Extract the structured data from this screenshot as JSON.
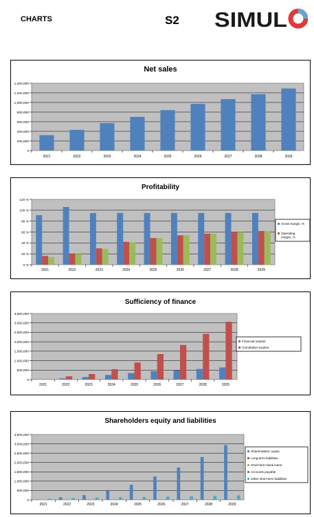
{
  "header": {
    "section": "CHARTS",
    "code": "S2",
    "logo_text": "SIMULO",
    "colors": {
      "logo_text": "#1a1a1a",
      "logo_ring_red": "#e0393e",
      "logo_ring_blue": "#6aa3cf"
    }
  },
  "colors": {
    "plot_bg": "#c0c0c0",
    "blue": "#4f81bd",
    "red": "#c0504d",
    "green": "#9bbb59",
    "purple": "#8064a2",
    "cyan": "#4bacc6"
  },
  "chart_data": [
    {
      "id": "net-sales",
      "type": "bar",
      "title": "Net sales",
      "categories": [
        "2021",
        "2022",
        "2023",
        "2024",
        "2025",
        "2026",
        "2027",
        "2028",
        "2029"
      ],
      "series": [
        {
          "values": [
            320000,
            430000,
            570000,
            700000,
            840000,
            970000,
            1070000,
            1170000,
            1290000
          ]
        }
      ],
      "yticks": [
        "0",
        "200,000",
        "400,000",
        "600,000",
        "800,000",
        "1,000,000",
        "1,200,000",
        "1,400,000"
      ],
      "ylim": [
        0,
        1400000
      ],
      "legend": "none",
      "grid": true
    },
    {
      "id": "profitability",
      "type": "bar",
      "title": "Profitability",
      "categories": [
        "2021",
        "2022",
        "2023",
        "2024",
        "2025",
        "2026",
        "2027",
        "2028",
        "2029"
      ],
      "series": [
        {
          "name": "Gross margin, %",
          "values": [
            91,
            106,
            95,
            95,
            95,
            95,
            95,
            95,
            95
          ]
        },
        {
          "name": "Operating margin, %",
          "values": [
            16,
            20,
            30,
            42,
            49,
            54,
            57,
            60,
            62
          ]
        },
        {
          "name": "",
          "values": [
            14,
            20,
            29,
            41,
            49,
            54,
            57,
            60,
            62
          ]
        }
      ],
      "yticks": [
        "0 %",
        "20 %",
        "40 %",
        "60 %",
        "80 %",
        "100 %",
        "120 %"
      ],
      "ylim": [
        0,
        120
      ],
      "legend": "right",
      "grid": true
    },
    {
      "id": "sufficiency",
      "type": "bar",
      "title": "Sufficiency of finance",
      "categories": [
        "2021",
        "2022",
        "2023",
        "2024",
        "2025",
        "2026",
        "2027",
        "2028",
        "2029"
      ],
      "series": [
        {
          "name": "Financial surplus",
          "values": [
            0,
            60000,
            130000,
            240000,
            340000,
            440000,
            480000,
            560000,
            640000
          ]
        },
        {
          "name": "Cumulative surplus",
          "values": [
            0,
            170000,
            290000,
            550000,
            900000,
            1350000,
            1830000,
            2420000,
            3060000
          ]
        }
      ],
      "yticks": [
        "0",
        "500,000",
        "1,000,000",
        "1,500,000",
        "2,000,000",
        "2,500,000",
        "3,000,000",
        "3,500,000"
      ],
      "ylim": [
        0,
        3500000
      ],
      "legend": "right",
      "grid": true
    },
    {
      "id": "equity",
      "type": "bar",
      "title": "Shareholders equity and liabilities",
      "categories": [
        "2021",
        "2022",
        "2023",
        "2024",
        "2025",
        "2026",
        "2027",
        "2028",
        "2029"
      ],
      "series": [
        {
          "name": "Shareholders' equity",
          "values": [
            20000,
            130000,
            250000,
            490000,
            810000,
            1250000,
            1730000,
            2290000,
            2930000
          ]
        },
        {
          "name": "Long-term liabilities",
          "values": [
            0,
            0,
            0,
            0,
            0,
            0,
            0,
            0,
            0
          ]
        },
        {
          "name": "Short-term bank loans",
          "values": [
            0,
            0,
            0,
            0,
            0,
            0,
            0,
            0,
            0
          ]
        },
        {
          "name": "Accounts payable",
          "values": [
            0,
            0,
            0,
            0,
            0,
            0,
            0,
            0,
            0
          ]
        },
        {
          "name": "Other short-term liabilities",
          "values": [
            60000,
            90000,
            120000,
            140000,
            150000,
            170000,
            190000,
            210000,
            240000
          ]
        }
      ],
      "yticks": [
        "0",
        "500,000",
        "1,000,000",
        "1,500,000",
        "2,000,000",
        "2,500,000",
        "3,000,000",
        "3,500,000"
      ],
      "ylim": [
        0,
        3500000
      ],
      "legend": "right",
      "grid": true
    }
  ]
}
